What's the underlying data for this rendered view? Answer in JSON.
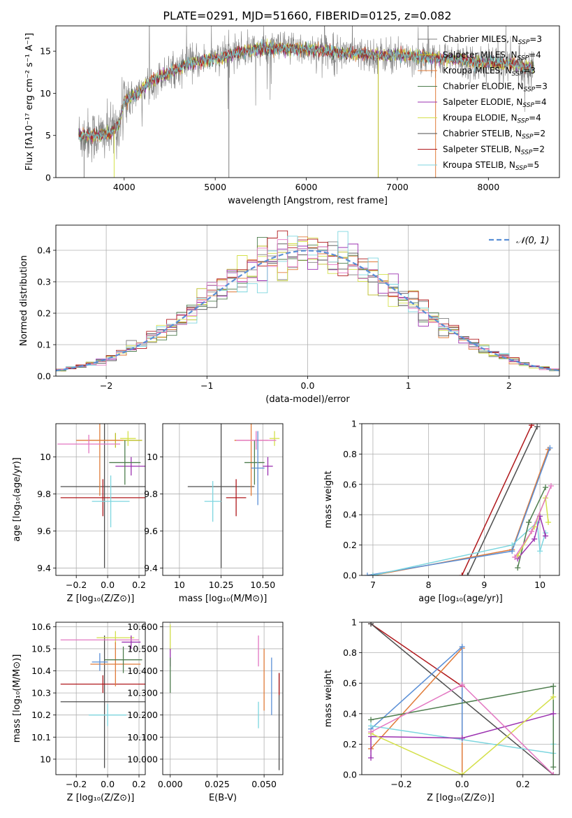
{
  "title": "PLATE=0291, MJD=51660, FIBERID=0125, z=0.082",
  "colors": {
    "Chabrier MILES": "#7f7f7f",
    "Salpeter MILES": "#bcbd22",
    "Kroupa MILES": "#e07b39",
    "Chabrier ELODIE": "#4e7d4e",
    "Salpeter ELODIE": "#9b30b0",
    "Kroupa ELODIE": "#d4e04a",
    "Chabrier STELIB": "#4d4d4d",
    "Salpeter STELIB": "#b0181c",
    "Kroupa STELIB": "#7dd6df",
    "pink": "#e377c2",
    "normal": "#5a8fd6"
  },
  "chart_data": [
    {
      "type": "line",
      "panel": "spectrum",
      "xlabel": "wavelength [Angstrom, rest frame]",
      "ylabel": "Flux [fλ10⁻¹⁷ erg cm⁻² s⁻¹ A⁻¹]",
      "xlim": [
        3250,
        8780
      ],
      "ylim": [
        0,
        18
      ],
      "xticks": [
        4000,
        5000,
        6000,
        7000,
        8000
      ],
      "yticks": [
        0,
        5,
        10,
        15
      ],
      "legend_loc": "right",
      "legend": [
        {
          "name": "Chabrier MILES",
          "nssp": "3",
          "color": "#7f7f7f"
        },
        {
          "name": "Salpeter MILES",
          "nssp": "4",
          "color": "#bcbd22"
        },
        {
          "name": "Kroupa MILES",
          "nssp": "3",
          "color": "#e07b39"
        },
        {
          "name": "Chabrier ELODIE",
          "nssp": "3",
          "color": "#4e7d4e"
        },
        {
          "name": "Salpeter ELODIE",
          "nssp": "4",
          "color": "#9b30b0"
        },
        {
          "name": "Kroupa ELODIE",
          "nssp": "4",
          "color": "#d4e04a"
        },
        {
          "name": "Chabrier STELIB",
          "nssp": "2",
          "color": "#4d4d4d"
        },
        {
          "name": "Salpeter STELIB",
          "nssp": "2",
          "color": "#b0181c"
        },
        {
          "name": "Kroupa STELIB",
          "nssp": "5",
          "color": "#7dd6df"
        }
      ],
      "continuum": [
        [
          3500,
          5.0
        ],
        [
          3700,
          5.0
        ],
        [
          3850,
          5.2
        ],
        [
          3950,
          6.5
        ],
        [
          4000,
          9.0
        ],
        [
          4150,
          10.0
        ],
        [
          4300,
          11.5
        ],
        [
          4500,
          12.5
        ],
        [
          4700,
          13.5
        ],
        [
          4900,
          14.0
        ],
        [
          5100,
          14.3
        ],
        [
          5300,
          15.0
        ],
        [
          5500,
          15.3
        ],
        [
          5800,
          15.3
        ],
        [
          6100,
          15.2
        ],
        [
          6400,
          14.8
        ],
        [
          6600,
          14.6
        ],
        [
          6800,
          14.5
        ],
        [
          7000,
          14.5
        ],
        [
          7200,
          14.4
        ],
        [
          7500,
          14.1
        ],
        [
          7800,
          13.8
        ],
        [
          8000,
          13.6
        ],
        [
          8300,
          13.4
        ],
        [
          8500,
          13.0
        ]
      ]
    },
    {
      "type": "step",
      "panel": "residual-histogram",
      "xlabel": "(data-model)/error",
      "ylabel": "Normed distribution",
      "xlim": [
        -2.5,
        2.5
      ],
      "ylim": [
        0,
        0.48
      ],
      "xticks": [
        -2,
        -1,
        0,
        1,
        2
      ],
      "yticks": [
        0.0,
        0.1,
        0.2,
        0.3,
        0.4
      ],
      "legend": [
        {
          "label": "𝒩(0, 1)",
          "color": "#5a8fd6",
          "style": "dashed"
        }
      ],
      "bin_width": 0.1
    },
    {
      "type": "errorbar",
      "panel": "age-vs-Z",
      "xlabel": "Z [log₁₀(Z/Z⊙)]",
      "ylabel": "age  [log₁₀(age/yr)]",
      "xlim": [
        -0.33,
        0.24
      ],
      "ylim": [
        9.36,
        10.18
      ],
      "xticks": [
        -0.2,
        0.0,
        0.2
      ],
      "yticks": [
        9.4,
        9.6,
        9.8,
        10.0
      ],
      "points": [
        {
          "x": -0.02,
          "xerr": 0.28,
          "y": 9.84,
          "yerr": 0.44,
          "color": "#4d4d4d"
        },
        {
          "x": -0.03,
          "xerr": 0.27,
          "y": 9.78,
          "yerr": 0.1,
          "color": "#b0181c"
        },
        {
          "x": 0.02,
          "xerr": 0.12,
          "y": 9.76,
          "yerr": 0.14,
          "color": "#7dd6df"
        },
        {
          "x": 0.05,
          "xerr": 0.17,
          "y": 10.09,
          "yerr": 0.04,
          "color": "#bcbd22"
        },
        {
          "x": -0.05,
          "xerr": 0.15,
          "y": 10.09,
          "yerr": 0.3,
          "color": "#e07b39"
        },
        {
          "x": 0.15,
          "xerr": 0.1,
          "y": 9.95,
          "yerr": 0.05,
          "color": "#9b30b0"
        },
        {
          "x": 0.11,
          "xerr": 0.1,
          "y": 9.97,
          "yerr": 0.12,
          "color": "#4e7d4e"
        },
        {
          "x": -0.12,
          "xerr": 0.2,
          "y": 10.07,
          "yerr": 0.05,
          "color": "#e377c2"
        },
        {
          "x": 0.13,
          "xerr": 0.05,
          "y": 10.1,
          "yerr": 0.04,
          "color": "#d4e04a"
        }
      ]
    },
    {
      "type": "errorbar",
      "panel": "age-vs-mass",
      "xlabel": "mass [log₁₀(M/M⊙)]",
      "ylabel": "",
      "xlim": [
        9.9,
        10.62
      ],
      "ylim": [
        9.36,
        10.18
      ],
      "xticks": [
        10.0,
        10.25,
        10.5
      ],
      "yticks": [
        9.4,
        9.6,
        9.8,
        10.0
      ],
      "points": [
        {
          "x": 10.25,
          "xerr": 0.2,
          "y": 9.84,
          "yerr": 0.44,
          "color": "#4d4d4d"
        },
        {
          "x": 10.34,
          "xerr": 0.06,
          "y": 9.78,
          "yerr": 0.1,
          "color": "#b0181c"
        },
        {
          "x": 10.2,
          "xerr": 0.05,
          "y": 9.76,
          "yerr": 0.11,
          "color": "#7dd6df"
        },
        {
          "x": 10.57,
          "xerr": 0.03,
          "y": 10.1,
          "yerr": 0.04,
          "color": "#d4e04a"
        },
        {
          "x": 10.43,
          "xerr": 0.1,
          "y": 10.09,
          "yerr": 0.3,
          "color": "#e07b39"
        },
        {
          "x": 10.53,
          "xerr": 0.03,
          "y": 9.95,
          "yerr": 0.05,
          "color": "#9b30b0"
        },
        {
          "x": 10.45,
          "xerr": 0.06,
          "y": 9.97,
          "yerr": 0.12,
          "color": "#4e7d4e"
        },
        {
          "x": 10.46,
          "xerr": 0.12,
          "y": 10.09,
          "yerr": 0.05,
          "color": "#e377c2"
        },
        {
          "x": 10.47,
          "xerr": 0.04,
          "y": 9.94,
          "yerr": 0.2,
          "color": "#5a8fd6"
        }
      ]
    },
    {
      "type": "line",
      "panel": "mass-weight-vs-age",
      "xlabel": "age  [log₁₀(age/yr)]",
      "ylabel": "mass weight",
      "xlim": [
        6.8,
        10.35
      ],
      "ylim": [
        0,
        1
      ],
      "xticks": [
        7,
        8,
        9,
        10
      ],
      "yticks": [
        0.0,
        0.2,
        0.4,
        0.6,
        0.8,
        1.0
      ],
      "series": [
        {
          "color": "#b0181c",
          "points": [
            [
              8.6,
              0.0
            ],
            [
              9.85,
              0.99
            ]
          ]
        },
        {
          "color": "#4d4d4d",
          "points": [
            [
              8.7,
              0.0
            ],
            [
              9.95,
              0.98
            ]
          ]
        },
        {
          "color": "#e07b39",
          "points": [
            [
              7.0,
              0.0
            ],
            [
              9.5,
              0.17
            ],
            [
              10.15,
              0.83
            ]
          ]
        },
        {
          "color": "#5a8fd6",
          "points": [
            [
              6.9,
              0.0
            ],
            [
              9.5,
              0.16
            ],
            [
              10.18,
              0.84
            ]
          ]
        },
        {
          "color": "#7dd6df",
          "points": [
            [
              7.0,
              0.0
            ],
            [
              9.5,
              0.2
            ],
            [
              9.95,
              0.35
            ],
            [
              10.0,
              0.16
            ],
            [
              10.1,
              0.28
            ]
          ]
        },
        {
          "color": "#4e7d4e",
          "points": [
            [
              9.6,
              0.05
            ],
            [
              9.8,
              0.35
            ],
            [
              10.1,
              0.58
            ]
          ]
        },
        {
          "color": "#9b30b0",
          "points": [
            [
              9.6,
              0.11
            ],
            [
              9.9,
              0.24
            ],
            [
              10.0,
              0.39
            ],
            [
              10.1,
              0.26
            ]
          ]
        },
        {
          "color": "#d4e04a",
          "points": [
            [
              9.6,
              0.13
            ],
            [
              9.9,
              0.32
            ],
            [
              10.1,
              0.51
            ],
            [
              10.15,
              0.35
            ]
          ]
        },
        {
          "color": "#e377c2",
          "points": [
            [
              9.55,
              0.12
            ],
            [
              9.85,
              0.29
            ],
            [
              10.2,
              0.59
            ]
          ]
        }
      ]
    },
    {
      "type": "errorbar",
      "panel": "mass-vs-Z",
      "xlabel": "Z [log₁₀(Z/Z⊙)]",
      "ylabel": "mass [log₁₀(M/M⊙)]",
      "xlim": [
        -0.33,
        0.24
      ],
      "ylim": [
        9.93,
        10.62
      ],
      "xticks": [
        -0.2,
        0.0,
        0.2
      ],
      "yticks": [
        10.0,
        10.1,
        10.2,
        10.3,
        10.4,
        10.5,
        10.6
      ],
      "points": [
        {
          "x": -0.02,
          "xerr": 0.28,
          "y": 10.26,
          "yerr": 0.3,
          "color": "#4d4d4d"
        },
        {
          "x": -0.03,
          "xerr": 0.27,
          "y": 10.34,
          "yerr": 0.04,
          "color": "#b0181c"
        },
        {
          "x": 0.0,
          "xerr": 0.12,
          "y": 10.2,
          "yerr": 0.05,
          "color": "#7dd6df"
        },
        {
          "x": 0.05,
          "xerr": 0.12,
          "y": 10.55,
          "yerr": 0.03,
          "color": "#d4e04a"
        },
        {
          "x": 0.05,
          "xerr": 0.16,
          "y": 10.43,
          "yerr": 0.1,
          "color": "#e07b39"
        },
        {
          "x": 0.15,
          "xerr": 0.06,
          "y": 10.53,
          "yerr": 0.03,
          "color": "#9b30b0"
        },
        {
          "x": 0.1,
          "xerr": 0.12,
          "y": 10.45,
          "yerr": 0.06,
          "color": "#4e7d4e"
        },
        {
          "x": -0.05,
          "xerr": 0.25,
          "y": 10.54,
          "yerr": 0.0,
          "color": "#e377c2"
        },
        {
          "x": -0.05,
          "xerr": 0.05,
          "y": 10.44,
          "yerr": 0.04,
          "color": "#5a8fd6"
        }
      ]
    },
    {
      "type": "errorbar",
      "panel": "mass-vs-EBV",
      "xlabel": "E(B-V)",
      "ylabel": "",
      "xlim": [
        -0.004,
        0.06
      ],
      "ylim": [
        9.93,
        10.62
      ],
      "xticks": [
        0.0,
        0.025,
        0.05
      ],
      "yticks": [
        10.0,
        10.1,
        10.2,
        10.3,
        10.4,
        10.5,
        10.6
      ],
      "points": [
        {
          "x": 0.058,
          "y": 10.17,
          "yerr": 0.22,
          "color": "#4d4d4d"
        },
        {
          "x": 0.058,
          "y": 10.34,
          "yerr": 0.05,
          "color": "#b0181c"
        },
        {
          "x": 0.047,
          "y": 10.2,
          "yerr": 0.06,
          "color": "#7dd6df"
        },
        {
          "x": 0.0,
          "y": 10.55,
          "yerr": 0.06,
          "color": "#d4e04a"
        },
        {
          "x": 0.05,
          "y": 10.36,
          "yerr": 0.14,
          "color": "#e07b39"
        },
        {
          "x": 0.0,
          "y": 10.46,
          "yerr": 0.04,
          "color": "#9b30b0"
        },
        {
          "x": 0.0,
          "y": 10.38,
          "yerr": 0.08,
          "color": "#4e7d4e"
        },
        {
          "x": 0.047,
          "y": 10.49,
          "yerr": 0.07,
          "color": "#e377c2"
        },
        {
          "x": 0.054,
          "y": 10.33,
          "yerr": 0.13,
          "color": "#5a8fd6"
        }
      ]
    },
    {
      "type": "line",
      "panel": "mass-weight-vs-Z",
      "xlabel": "Z [log₁₀(Z/Z⊙)]",
      "ylabel": "mass weight",
      "xlim": [
        -0.33,
        0.32
      ],
      "ylim": [
        0,
        1
      ],
      "xticks": [
        -0.2,
        0.0,
        0.2
      ],
      "yticks": [
        0.0,
        0.2,
        0.4,
        0.6,
        0.8,
        1.0
      ],
      "series": [
        {
          "color": "#b0181c",
          "points": [
            [
              -0.3,
              0.99
            ],
            [
              0.0,
              0.58
            ]
          ]
        },
        {
          "color": "#4d4d4d",
          "points": [
            [
              -0.3,
              0.99
            ],
            [
              0.3,
              0.0
            ]
          ]
        },
        {
          "color": "#e07b39",
          "points": [
            [
              -0.3,
              0.17
            ],
            [
              0.0,
              0.83
            ],
            [
              0.0,
              0.0
            ]
          ]
        },
        {
          "color": "#5a8fd6",
          "points": [
            [
              -0.3,
              0.3
            ],
            [
              0.0,
              0.84
            ],
            [
              0.0,
              0.24
            ]
          ]
        },
        {
          "color": "#7dd6df",
          "points": [
            [
              -0.3,
              0.32
            ],
            [
              0.0,
              0.23
            ],
            [
              0.3,
              0.14
            ],
            [
              0.3,
              0.2
            ]
          ]
        },
        {
          "color": "#4e7d4e",
          "points": [
            [
              -0.3,
              0.36
            ],
            [
              0.3,
              0.58
            ],
            [
              0.3,
              0.05
            ]
          ]
        },
        {
          "color": "#9b30b0",
          "points": [
            [
              -0.3,
              0.11
            ],
            [
              -0.3,
              0.25
            ],
            [
              0.0,
              0.24
            ],
            [
              0.3,
              0.4
            ]
          ]
        },
        {
          "color": "#d4e04a",
          "points": [
            [
              -0.3,
              0.27
            ],
            [
              0.0,
              0.0
            ],
            [
              0.3,
              0.51
            ]
          ]
        },
        {
          "color": "#e377c2",
          "points": [
            [
              -0.3,
              0.28
            ],
            [
              0.0,
              0.59
            ],
            [
              0.3,
              0.0
            ]
          ]
        }
      ]
    }
  ]
}
